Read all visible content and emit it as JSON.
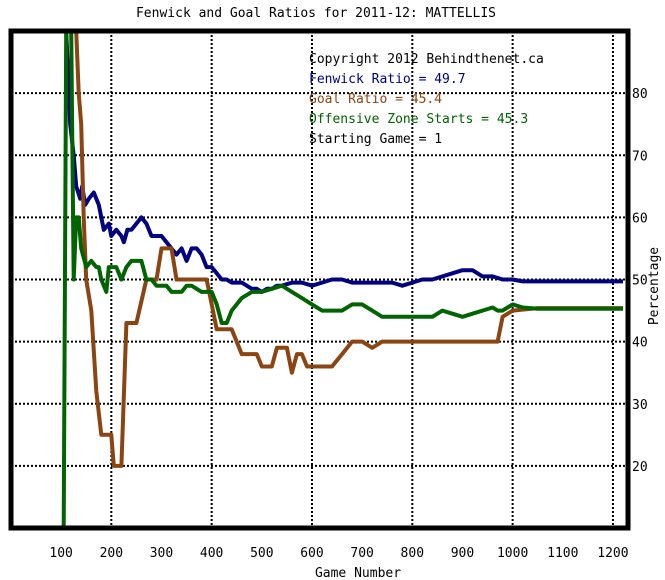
{
  "chart_data": {
    "type": "line",
    "title": "Fenwick and Goal Ratios for 2011-12: MATTELLIS",
    "xlabel": "Game Number",
    "ylabel": "Percentage",
    "xlim": [
      0,
      1230
    ],
    "ylim": [
      10,
      90
    ],
    "x_ticks": [
      100,
      200,
      300,
      400,
      500,
      600,
      700,
      800,
      900,
      1000,
      1100,
      1200
    ],
    "y_ticks": [
      20,
      30,
      40,
      50,
      60,
      70,
      80
    ],
    "x_grid": [
      200,
      400,
      600,
      800,
      1000,
      1200
    ],
    "y_grid": [
      20,
      30,
      40,
      50,
      60,
      70,
      80
    ],
    "grid": true,
    "annotations": [
      {
        "text": "Copyright 2012 Behindthenet.ca",
        "color": "#000000"
      },
      {
        "text": "Fenwick Ratio = 49.7",
        "color": "#000080"
      },
      {
        "text": "Goal Ratio = 45.4",
        "color": "#8b4513"
      },
      {
        "text": "Offensive Zone Starts = 45.3",
        "color": "#006400"
      },
      {
        "text": "Starting Game = 1",
        "color": "#000000"
      }
    ],
    "series": [
      {
        "color": "#000080",
        "x": [
          110,
          118,
          125,
          130,
          138,
          142,
          148,
          155,
          165,
          175,
          185,
          195,
          200,
          210,
          220,
          225,
          232,
          240,
          250,
          260,
          270,
          280,
          290,
          300,
          310,
          330,
          340,
          350,
          360,
          370,
          380,
          390,
          400,
          410,
          420,
          430,
          440,
          450,
          460,
          470,
          480,
          490,
          500,
          510,
          520,
          530,
          540,
          560,
          580,
          600,
          620,
          640,
          660,
          680,
          700,
          720,
          740,
          760,
          780,
          800,
          820,
          840,
          860,
          880,
          900,
          920,
          940,
          960,
          980,
          1000,
          1020,
          1050,
          1100,
          1150,
          1220
        ],
        "y": [
          90,
          75,
          70,
          65,
          63,
          65,
          62,
          63,
          64,
          62,
          58,
          59,
          57,
          58,
          57,
          56,
          58,
          58,
          59,
          60,
          59,
          57,
          57,
          57,
          56,
          54,
          55,
          53,
          55,
          55,
          54,
          52,
          52,
          51,
          50,
          50,
          49.5,
          49.5,
          49.5,
          49,
          48.5,
          48.5,
          48,
          48.5,
          48.5,
          49,
          49,
          49.5,
          49.5,
          49,
          49.5,
          50,
          50,
          49.5,
          49.5,
          49.5,
          49.5,
          49.5,
          49,
          49.5,
          50,
          50,
          50.5,
          51,
          51.5,
          51.5,
          50.5,
          50.5,
          50,
          50,
          49.7,
          49.7,
          49.7,
          49.7,
          49.7
        ]
      },
      {
        "color": "#8b4513",
        "x": [
          115,
          120,
          125,
          130,
          135,
          140,
          145,
          150,
          160,
          170,
          180,
          190,
          200,
          205,
          210,
          220,
          230,
          235,
          240,
          250,
          270,
          280,
          290,
          300,
          320,
          330,
          340,
          350,
          360,
          370,
          380,
          390,
          400,
          410,
          420,
          430,
          440,
          460,
          480,
          490,
          500,
          520,
          530,
          540,
          550,
          560,
          570,
          580,
          590,
          600,
          620,
          640,
          660,
          680,
          700,
          720,
          740,
          760,
          780,
          800,
          850,
          900,
          950,
          960,
          970,
          980,
          1000,
          1050,
          1100,
          1150,
          1220
        ],
        "y": [
          90,
          90,
          90,
          90,
          80,
          75,
          60,
          50,
          45,
          32,
          25,
          25,
          25,
          20,
          20,
          20,
          43,
          43,
          43,
          43,
          50,
          50,
          50,
          55,
          55,
          50,
          50,
          50,
          50,
          50,
          50,
          50,
          46,
          42,
          42,
          42,
          42,
          38,
          38,
          38,
          36,
          36,
          39,
          39,
          39,
          35,
          38,
          38,
          36,
          36,
          36,
          36,
          38,
          40,
          40,
          39,
          40,
          40,
          40,
          40,
          40,
          40,
          40,
          40,
          40,
          44,
          45,
          45.4,
          45.4,
          45.4,
          45.4
        ]
      },
      {
        "color": "#006400",
        "x": [
          105,
          110,
          115,
          120,
          125,
          130,
          135,
          140,
          150,
          160,
          170,
          175,
          180,
          190,
          195,
          200,
          210,
          220,
          230,
          240,
          250,
          260,
          270,
          280,
          290,
          300,
          310,
          320,
          330,
          340,
          350,
          360,
          380,
          400,
          410,
          420,
          430,
          440,
          450,
          460,
          480,
          500,
          520,
          540,
          560,
          580,
          600,
          620,
          640,
          660,
          680,
          700,
          720,
          740,
          760,
          780,
          800,
          820,
          840,
          860,
          880,
          900,
          920,
          940,
          960,
          970,
          980,
          1000,
          1020,
          1050,
          1100,
          1150,
          1220
        ],
        "y": [
          10,
          90,
          90,
          90,
          50,
          60,
          60,
          55,
          52,
          53,
          52,
          52,
          50,
          48,
          52,
          52,
          52,
          50,
          52,
          53,
          53,
          53,
          50,
          50,
          49,
          49,
          49,
          48,
          48,
          48,
          49,
          49,
          48,
          48,
          46,
          43,
          43,
          45,
          46,
          47,
          48,
          48,
          48.5,
          49,
          48,
          47,
          46,
          45,
          45,
          45,
          46,
          46,
          45,
          44,
          44,
          44,
          44,
          44,
          44,
          45,
          44.5,
          44,
          44.5,
          45,
          45.5,
          45,
          45,
          46,
          45.5,
          45.3,
          45.3,
          45.3,
          45.3
        ]
      }
    ]
  }
}
